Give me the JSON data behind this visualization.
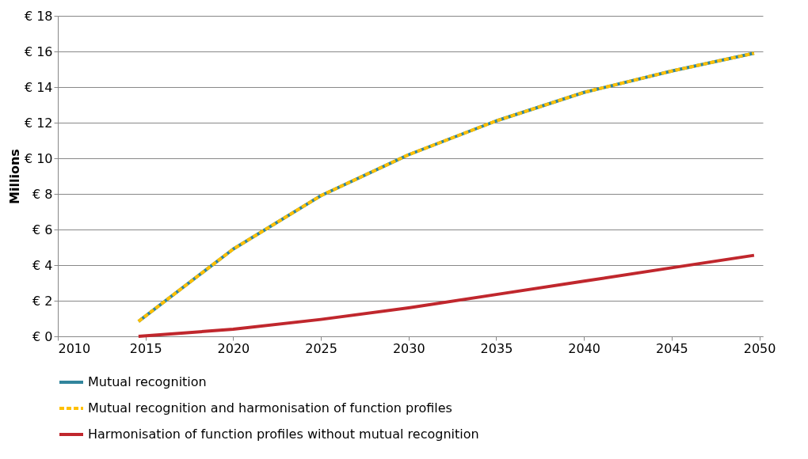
{
  "chart_data": {
    "type": "line",
    "ylabel": "Millions",
    "xlim": [
      2010,
      2050.2
    ],
    "xticks": [
      2010,
      2015,
      2020,
      2025,
      2030,
      2035,
      2040,
      2045,
      2050
    ],
    "ylim": [
      0,
      18
    ],
    "yticks": [
      {
        "value": 0,
        "label": "€ 0"
      },
      {
        "value": 2,
        "label": "€ 2"
      },
      {
        "value": 4,
        "label": "€ 4"
      },
      {
        "value": 6,
        "label": "€ 6"
      },
      {
        "value": 8,
        "label": "€ 8"
      },
      {
        "value": 10,
        "label": "€ 10"
      },
      {
        "value": 12,
        "label": "€ 12"
      },
      {
        "value": 14,
        "label": "€ 14"
      },
      {
        "value": 16,
        "label": "€ 16"
      },
      {
        "value": 18,
        "label": "€ 18"
      }
    ],
    "x": [
      2014.6,
      2020,
      2025,
      2030,
      2035,
      2040,
      2045,
      2049.7
    ],
    "series": [
      {
        "name": "Mutual recognition",
        "color": "#31859c",
        "line_style": "solid",
        "values": [
          0.84,
          4.9,
          7.9,
          10.2,
          12.1,
          13.7,
          14.9,
          15.9
        ]
      },
      {
        "name": "Mutual recognition and harmonisation of function profiles",
        "color": "#ffc000",
        "line_style": "dashed",
        "values": [
          0.84,
          4.9,
          7.9,
          10.2,
          12.1,
          13.7,
          14.9,
          15.9
        ]
      },
      {
        "name": "Harmonisation of function profiles without mutual recognition",
        "color": "#c0272d",
        "line_style": "solid",
        "values": [
          0.0,
          0.4,
          0.95,
          1.6,
          2.35,
          3.1,
          3.85,
          4.55
        ]
      }
    ],
    "grid": "y",
    "legend": "bottom",
    "marker": "none"
  }
}
